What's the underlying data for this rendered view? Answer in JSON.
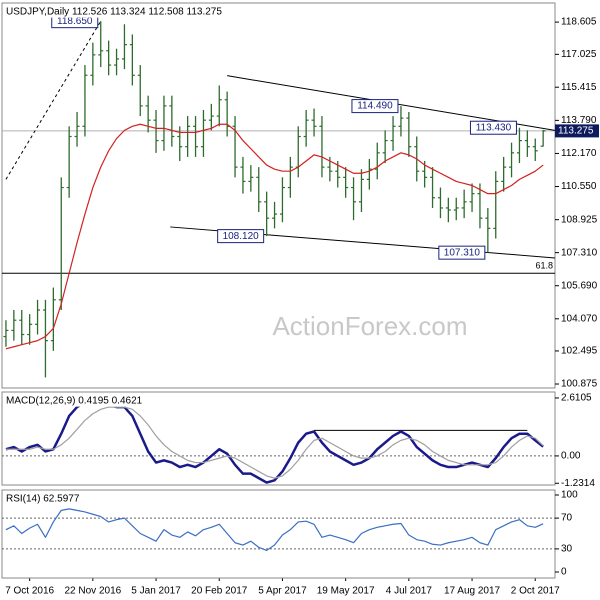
{
  "chart_data": [
    {
      "type": "ohlc",
      "title": "USDJPY,Daily 112.526 113.324 112.508 113.275",
      "watermark": "ActionForex.com",
      "color": "#2e6b2e",
      "categories": [
        null,
        null,
        null,
        "7 Oct 2016",
        null,
        null,
        null,
        null,
        null,
        null,
        null,
        "22 Nov 2016",
        null,
        null,
        null,
        null,
        null,
        null,
        null,
        "5 Jan 2017",
        null,
        null,
        null,
        null,
        null,
        null,
        null,
        "20 Feb 2017",
        null,
        null,
        null,
        null,
        null,
        null,
        null,
        "5 Apr 2017",
        null,
        null,
        null,
        null,
        null,
        null,
        null,
        "19 May 2017",
        null,
        null,
        null,
        null,
        null,
        null,
        null,
        "4 Jul 2017",
        null,
        null,
        null,
        null,
        null,
        null,
        null,
        "17 Aug 2017",
        null,
        null,
        null,
        null,
        null,
        null,
        null,
        "2 Oct 2017",
        null
      ],
      "open": [
        103.2,
        103.5,
        104,
        103.3,
        103.8,
        104.5,
        103,
        105,
        110.5,
        113,
        113.5,
        116,
        117,
        117.2,
        116.5,
        116.8,
        117.5,
        116,
        114.5,
        113.8,
        112.8,
        114.5,
        113,
        112.5,
        113.5,
        112.5,
        113.8,
        114,
        114.8,
        113.5,
        111.5,
        110.8,
        111,
        109.8,
        109,
        109.2,
        110.5,
        111.5,
        113,
        113.8,
        113.5,
        111.5,
        111.3,
        111,
        110.5,
        109.8,
        110.9,
        111.4,
        112.2,
        112.8,
        113.5,
        113.9,
        112.5,
        111.3,
        111,
        110,
        109.5,
        109.4,
        109.5,
        109.8,
        110.2,
        109,
        108.5,
        110.8,
        111.5,
        112.2,
        112.8,
        112.5,
        112.526
      ],
      "high": [
        104,
        104.5,
        104.5,
        104.3,
        105,
        105,
        105.6,
        111,
        113.5,
        114.2,
        116.5,
        117.6,
        118.65,
        117.7,
        117.3,
        118.5,
        118,
        116.5,
        115,
        114.3,
        115,
        115,
        113.5,
        114,
        114,
        114.3,
        114.6,
        115.5,
        115.2,
        114,
        112,
        111.6,
        111.5,
        110.3,
        109.8,
        111,
        112,
        113.5,
        114.3,
        114.37,
        114,
        112,
        111.8,
        111.5,
        111,
        111.4,
        111.9,
        112.7,
        113.3,
        114,
        114.49,
        114.2,
        113,
        111.8,
        111.5,
        110.5,
        110,
        110,
        110.4,
        110.7,
        110.7,
        109.5,
        111.3,
        112,
        112.7,
        113.43,
        113.3,
        112.9,
        113.324
      ],
      "low": [
        102.7,
        103,
        102.8,
        102.8,
        103.3,
        101.2,
        102.5,
        104.5,
        110,
        112.5,
        113,
        115.5,
        116.4,
        116,
        116,
        116.3,
        115.5,
        114,
        113.2,
        112.2,
        112.3,
        112.5,
        111.8,
        112,
        112,
        112,
        113.3,
        113.5,
        113,
        111,
        110.2,
        110.3,
        109.3,
        108.12,
        108.5,
        108.8,
        110,
        111,
        112.5,
        113,
        111,
        110.8,
        110.5,
        110,
        108.9,
        109.3,
        110.4,
        110.9,
        111.7,
        112.3,
        113,
        112,
        110.8,
        110.5,
        109.5,
        109,
        108.8,
        108.9,
        109,
        109.3,
        108.5,
        107.31,
        108,
        110.3,
        111,
        111.7,
        112,
        111.8,
        112.508
      ],
      "close": [
        103.5,
        104,
        103.3,
        103.8,
        104.5,
        103,
        105,
        110.5,
        113,
        113.5,
        116,
        117,
        117.2,
        116.5,
        116.8,
        117.5,
        116,
        114.5,
        113.8,
        112.8,
        114.5,
        113,
        112.5,
        113.5,
        112.5,
        113.8,
        114,
        114.8,
        113.5,
        111.5,
        110.8,
        111,
        109.8,
        109,
        109.2,
        110.5,
        111.5,
        113,
        113.8,
        113.5,
        111.5,
        111.3,
        111,
        110.5,
        109.8,
        110.9,
        111.4,
        112.2,
        112.8,
        113.5,
        113.9,
        112.5,
        111.3,
        111,
        110,
        109.5,
        109.4,
        109.5,
        109.8,
        110.2,
        109,
        108.5,
        110.8,
        111.5,
        112.2,
        112.8,
        112.5,
        112.3,
        113.275
      ],
      "series": [
        {
          "color": "#d42020",
          "values": [
            102.6,
            102.7,
            102.8,
            102.9,
            103,
            103.2,
            103.6,
            104.8,
            106.3,
            107.8,
            109.2,
            110.5,
            111.5,
            112.3,
            112.9,
            113.3,
            113.5,
            113.6,
            113.5,
            113.4,
            113.4,
            113.3,
            113.2,
            113.2,
            113.2,
            113.3,
            113.4,
            113.6,
            113.6,
            113.3,
            112.8,
            112.4,
            112,
            111.6,
            111.4,
            111.3,
            111.3,
            111.5,
            111.8,
            112.1,
            112,
            111.8,
            111.6,
            111.4,
            111.2,
            111.2,
            111.3,
            111.5,
            111.8,
            112,
            112.2,
            112.1,
            111.9,
            111.6,
            111.4,
            111.2,
            111,
            110.8,
            110.7,
            110.6,
            110.4,
            110.2,
            110.2,
            110.4,
            110.6,
            110.9,
            111.1,
            111.3,
            111.6
          ]
        }
      ],
      "ylim": [
        100.68,
        119.54
      ],
      "yticks": [
        118.605,
        117.025,
        115.415,
        {
          "value": 113.79,
          "label": "113.790"
        },
        {
          "value": 112.17,
          "label": "112.170"
        },
        {
          "value": 110.55,
          "label": "110.550"
        },
        108.925,
        {
          "value": 107.31,
          "label": "107.310"
        },
        {
          "value": 105.69,
          "label": "105.690"
        },
        {
          "value": 104.07,
          "label": "104.070"
        },
        102.495,
        100.875
      ],
      "levels": [
        {
          "label": "61.8",
          "value": 106.3
        }
      ],
      "annotations": [
        {
          "label": "118.650",
          "x": 12,
          "y": 118.65
        },
        {
          "label": "108.120",
          "x": 33,
          "y": 108.12
        },
        {
          "label": "114.490",
          "x": 50,
          "y": 114.49
        },
        {
          "label": "107.310",
          "x": 61,
          "y": 107.31
        },
        {
          "label": "113.430",
          "x": 65,
          "y": 113.43
        }
      ],
      "trendlines": [
        {
          "x": [
            28,
            69.5
          ],
          "y": [
            115.98,
            113.3
          ]
        },
        {
          "x": [
            20.8,
            69.5
          ],
          "y": [
            108.57,
            107.05
          ]
        },
        {
          "x": [
            0,
            12
          ],
          "y": [
            110.9,
            118.65
          ],
          "style": "dashed"
        }
      ]
    },
    {
      "type": "line",
      "title": "MACD(12,26,9) 0.4195 0.4621",
      "series": [
        {
          "color": "#1a1a8c",
          "values": [
            0.3,
            0.4,
            0.2,
            0.4,
            0.5,
            0.2,
            0.3,
            1.0,
            1.8,
            2.2,
            2.4,
            2.5,
            2.4,
            2.3,
            2.2,
            2.2,
            1.8,
            1.0,
            0.2,
            -0.3,
            -0.2,
            -0.3,
            -0.5,
            -0.4,
            -0.5,
            -0.3,
            0.0,
            0.3,
            0.1,
            -0.4,
            -0.8,
            -0.8,
            -1.0,
            -1.2,
            -1.1,
            -0.7,
            -0.1,
            0.6,
            1.0,
            1.1,
            0.6,
            0.2,
            0.0,
            -0.2,
            -0.4,
            -0.3,
            -0.1,
            0.3,
            0.6,
            0.9,
            1.1,
            0.9,
            0.4,
            0.1,
            -0.2,
            -0.4,
            -0.5,
            -0.5,
            -0.4,
            -0.3,
            -0.4,
            -0.5,
            -0.1,
            0.4,
            0.8,
            1.0,
            1.0,
            0.7,
            0.42
          ]
        },
        {
          "color": "#a0a0a0",
          "values": [
            0.3,
            0.3,
            0.3,
            0.3,
            0.4,
            0.3,
            0.3,
            0.5,
            0.8,
            1.2,
            1.6,
            1.9,
            2.1,
            2.2,
            2.2,
            2.2,
            2.1,
            1.8,
            1.4,
            0.9,
            0.5,
            0.2,
            0.0,
            -0.2,
            -0.3,
            -0.3,
            -0.2,
            -0.1,
            0.0,
            -0.1,
            -0.3,
            -0.5,
            -0.7,
            -0.9,
            -1.0,
            -0.9,
            -0.6,
            -0.2,
            0.3,
            0.7,
            0.8,
            0.6,
            0.4,
            0.2,
            0.0,
            -0.1,
            -0.1,
            0.0,
            0.2,
            0.5,
            0.7,
            0.8,
            0.7,
            0.5,
            0.2,
            0.0,
            -0.2,
            -0.3,
            -0.4,
            -0.4,
            -0.4,
            -0.4,
            -0.3,
            0.0,
            0.4,
            0.7,
            0.9,
            0.8,
            0.46
          ]
        }
      ],
      "ylim": [
        -1.31,
        2.88
      ],
      "yticks": [
        2.6105,
        {
          "value": 0,
          "label": "0.00"
        },
        -1.2314
      ],
      "levels": [
        0
      ],
      "hlines": [
        {
          "x": [
            39,
            66
          ],
          "y": 1.15
        }
      ]
    },
    {
      "type": "line",
      "title": "RSI(14) 62.5977",
      "series": [
        {
          "color": "#3a6fc4",
          "values": [
            55,
            60,
            50,
            57,
            62,
            45,
            65,
            80,
            82,
            80,
            78,
            75,
            72,
            65,
            68,
            70,
            60,
            50,
            45,
            40,
            55,
            48,
            45,
            52,
            47,
            55,
            58,
            62,
            50,
            38,
            35,
            40,
            32,
            28,
            35,
            48,
            55,
            65,
            66,
            62,
            45,
            48,
            45,
            42,
            38,
            50,
            55,
            58,
            60,
            62,
            63,
            48,
            42,
            40,
            36,
            35,
            38,
            40,
            42,
            45,
            38,
            35,
            55,
            60,
            65,
            68,
            60,
            58,
            62.6
          ]
        }
      ],
      "ylim": [
        -7.8,
        106.5
      ],
      "yticks": [
        100,
        70,
        30,
        0
      ],
      "levels": [
        70,
        30
      ]
    }
  ]
}
